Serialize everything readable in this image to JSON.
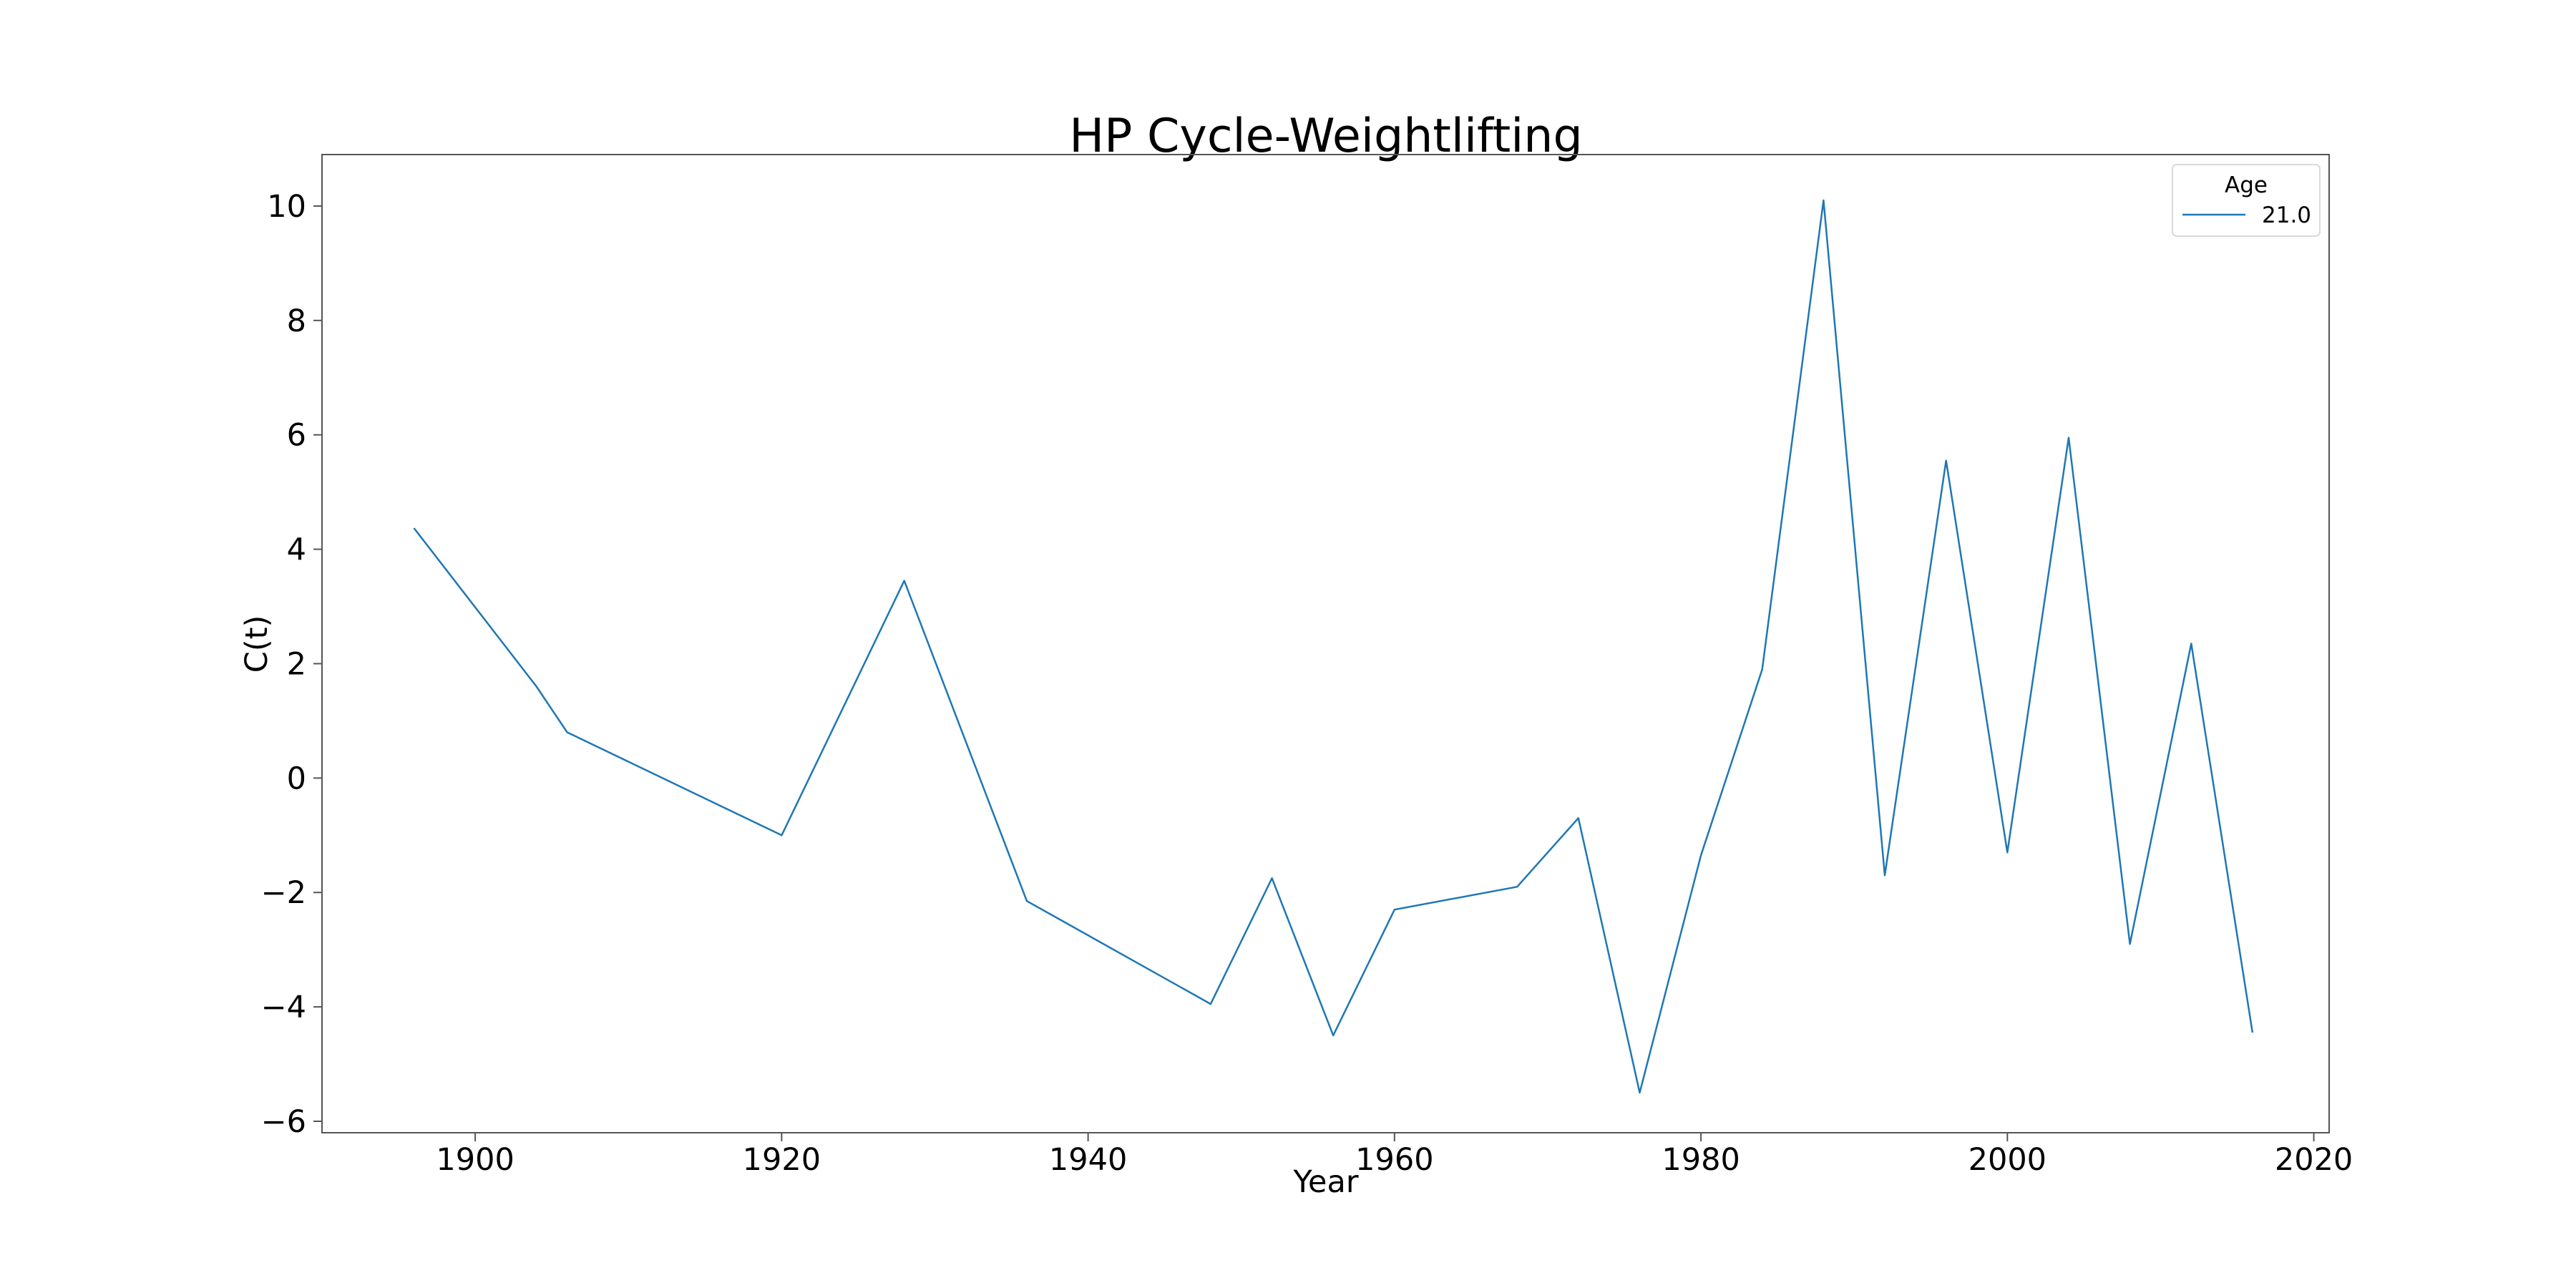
{
  "chart_data": {
    "type": "line",
    "title": "HP Cycle-Weightlifting",
    "xlabel": "Year",
    "ylabel": "C(t)",
    "xlim": [
      1890,
      2021
    ],
    "ylim": [
      -6.2,
      10.9
    ],
    "x_ticks": [
      1900,
      1920,
      1940,
      1960,
      1980,
      2000,
      2020
    ],
    "y_ticks": [
      -6,
      -4,
      -2,
      0,
      2,
      4,
      6,
      8,
      10
    ],
    "grid": false,
    "legend": {
      "title": "Age",
      "placement": "top-right"
    },
    "series": [
      {
        "name": "21.0",
        "color": "#1f77b4",
        "x": [
          1896,
          1904,
          1906,
          1920,
          1928,
          1936,
          1948,
          1952,
          1956,
          1960,
          1968,
          1972,
          1976,
          1980,
          1984,
          1988,
          1992,
          1996,
          2000,
          2004,
          2008,
          2012,
          2016
        ],
        "y": [
          4.37,
          1.6,
          0.8,
          -1.0,
          3.45,
          -2.15,
          -3.95,
          -1.75,
          -4.5,
          -2.3,
          -1.9,
          -0.7,
          -5.5,
          -1.35,
          1.9,
          10.1,
          -1.7,
          5.55,
          -1.3,
          5.95,
          -2.9,
          2.35,
          -4.45
        ]
      }
    ]
  }
}
